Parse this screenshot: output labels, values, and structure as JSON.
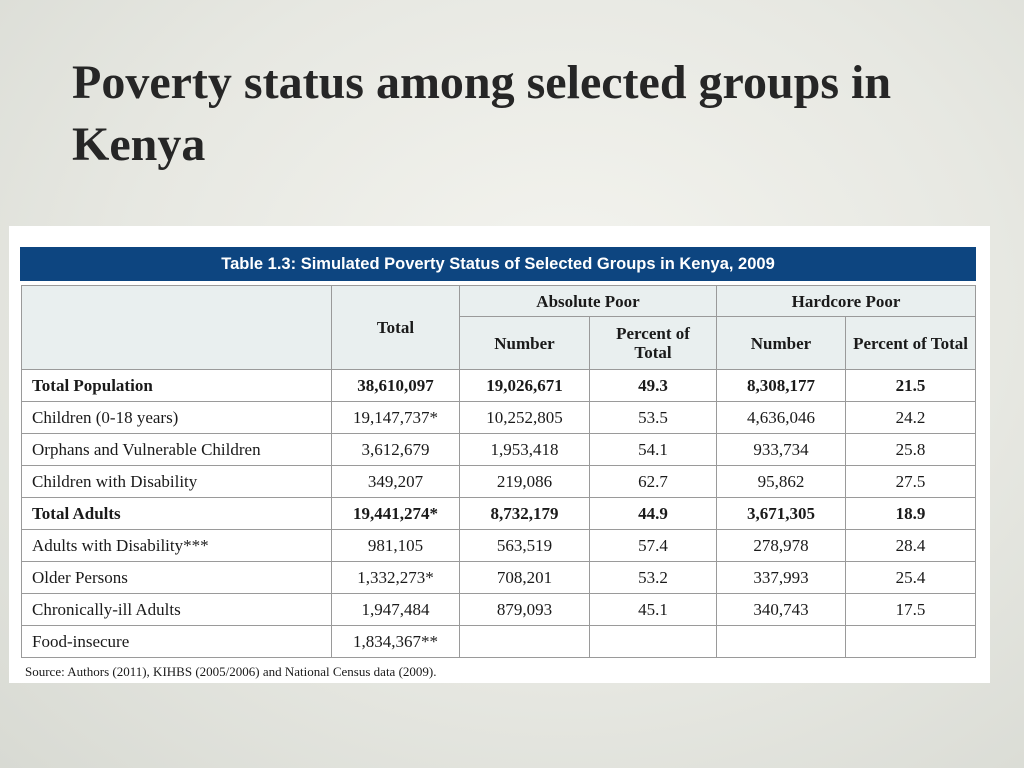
{
  "slide": {
    "title": "Poverty status among selected groups in Kenya"
  },
  "table": {
    "caption": "Table 1.3:  Simulated Poverty Status of Selected Groups in Kenya, 2009",
    "headers": {
      "total": "Total",
      "absolute_poor": "Absolute Poor",
      "hardcore_poor": "Hardcore Poor",
      "number": "Number",
      "percent_of_total": "Percent of Total"
    },
    "rows": [
      {
        "label": "Total Population",
        "total": "38,610,097",
        "abs_number": "19,026,671",
        "abs_percent": "49.3",
        "hc_number": "8,308,177",
        "hc_percent": "21.5",
        "bold": true
      },
      {
        "label": "Children (0-18 years)",
        "total": "19,147,737*",
        "abs_number": "10,252,805",
        "abs_percent": "53.5",
        "hc_number": "4,636,046",
        "hc_percent": "24.2",
        "bold": false
      },
      {
        "label": "Orphans and Vulnerable Children",
        "total": "3,612,679",
        "abs_number": "1,953,418",
        "abs_percent": "54.1",
        "hc_number": "933,734",
        "hc_percent": "25.8",
        "bold": false
      },
      {
        "label": "Children with Disability",
        "total": "349,207",
        "abs_number": "219,086",
        "abs_percent": "62.7",
        "hc_number": "95,862",
        "hc_percent": "27.5",
        "bold": false
      },
      {
        "label": "Total Adults",
        "total": "19,441,274*",
        "abs_number": "8,732,179",
        "abs_percent": "44.9",
        "hc_number": "3,671,305",
        "hc_percent": "18.9",
        "bold": true
      },
      {
        "label": "Adults with Disability***",
        "total": "981,105",
        "abs_number": "563,519",
        "abs_percent": "57.4",
        "hc_number": "278,978",
        "hc_percent": "28.4",
        "bold": false
      },
      {
        "label": "Older Persons",
        "total": "1,332,273*",
        "abs_number": "708,201",
        "abs_percent": "53.2",
        "hc_number": "337,993",
        "hc_percent": "25.4",
        "bold": false
      },
      {
        "label": "Chronically-ill Adults",
        "total": "1,947,484",
        "abs_number": "879,093",
        "abs_percent": "45.1",
        "hc_number": "340,743",
        "hc_percent": "17.5",
        "bold": false
      },
      {
        "label": "Food-insecure",
        "total": "1,834,367**",
        "abs_number": "",
        "abs_percent": "",
        "hc_number": "",
        "hc_percent": "",
        "bold": false
      }
    ],
    "source": "Source: Authors (2011), KIHBS (2005/2006) and National Census data (2009)."
  },
  "colors": {
    "banner": "#0d4580",
    "header_background": "#e9efef",
    "border": "#9a9a9a",
    "title_text": "#262626"
  }
}
